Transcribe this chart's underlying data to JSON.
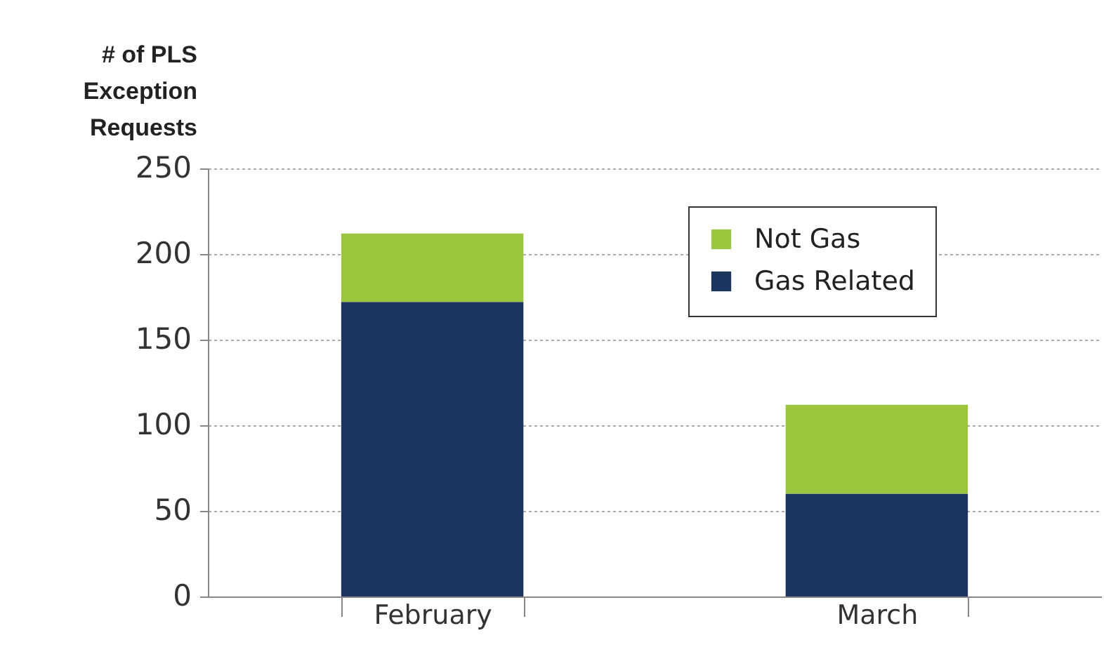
{
  "chart_data": {
    "type": "bar",
    "ylabel": "# of PLS Exception Requests",
    "categories": [
      "February",
      "March"
    ],
    "series": [
      {
        "name": "Gas Related",
        "color": "#1c355e",
        "values": [
          172,
          60
        ]
      },
      {
        "name": "Not Gas",
        "color": "#9ac53c",
        "values": [
          40,
          52
        ]
      }
    ],
    "stacked": true,
    "ylim": [
      0,
      250
    ],
    "yticks": [
      0,
      50,
      100,
      150,
      200,
      250
    ],
    "grid": "y",
    "legend": "top right"
  }
}
